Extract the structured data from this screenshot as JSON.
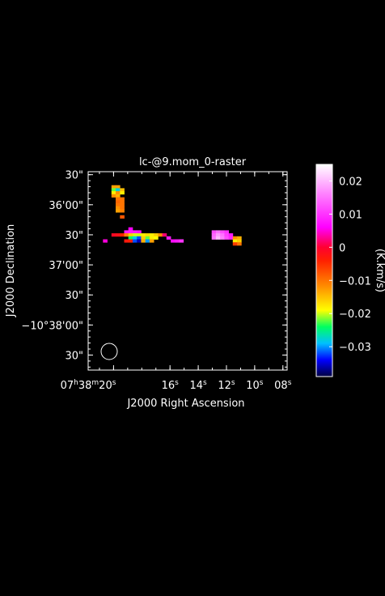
{
  "chart_data": {
    "type": "heatmap",
    "title": "lc-@9.mom_0-raster",
    "xlabel": "J2000 Right Ascension",
    "ylabel": "J2000 Declination",
    "x_ticks": [
      {
        "label": "07h38m20s",
        "ra_sec": 20
      },
      {
        "label": "16s",
        "ra_sec": 16
      },
      {
        "label": "14s",
        "ra_sec": 14
      },
      {
        "label": "12s",
        "ra_sec": 12
      },
      {
        "label": "10s",
        "ra_sec": 10
      },
      {
        "label": "08s",
        "ra_sec": 8
      }
    ],
    "x_tick_parts": {
      "h": "07",
      "hsup": "h",
      "m": "38",
      "msup": "m",
      "s20": "20",
      "ssup": "s"
    },
    "y_ticks": [
      {
        "label": "30\"",
        "dec_arcsec": 630
      },
      {
        "label": "36'00\"",
        "dec_arcsec": 660
      },
      {
        "label": "30\"",
        "dec_arcsec": 690
      },
      {
        "label": "37'00\"",
        "dec_arcsec": 720
      },
      {
        "label": "30\"",
        "dec_arcsec": 750
      },
      {
        "label": "−10°38'00\"",
        "dec_arcsec": 780
      },
      {
        "label": "30\"",
        "dec_arcsec": 810
      }
    ],
    "colorbar": {
      "label": "(K.km/s)",
      "min": -0.039,
      "max": 0.025,
      "tick_labels": [
        "0.02",
        "0.01",
        "0",
        "−0.01",
        "−0.02",
        "−0.03"
      ],
      "ticks": [
        0.02,
        0.01,
        0,
        -0.01,
        -0.02,
        -0.03
      ]
    },
    "beam": "circle",
    "colors": {
      "background": "#000000",
      "text": "#ffffff",
      "colormap": [
        [
          -0.039,
          "#000040"
        ],
        [
          -0.034,
          "#0000ff"
        ],
        [
          -0.029,
          "#00c0ff"
        ],
        [
          -0.024,
          "#00ff60"
        ],
        [
          -0.019,
          "#ffff00"
        ],
        [
          -0.012,
          "#ff9000"
        ],
        [
          -0.004,
          "#ff2000"
        ],
        [
          0.0,
          "#ff0030"
        ],
        [
          0.006,
          "#ff00ff"
        ],
        [
          0.016,
          "#ff80ff"
        ],
        [
          0.025,
          "#ffffff"
        ]
      ]
    },
    "pixels": [
      [
        20.0,
        642,
        -0.013
      ],
      [
        19.7,
        642,
        -0.013
      ],
      [
        20.0,
        645,
        -0.022
      ],
      [
        19.7,
        645,
        -0.028
      ],
      [
        19.4,
        645,
        -0.015
      ],
      [
        20.0,
        648,
        -0.018
      ],
      [
        19.7,
        648,
        -0.012
      ],
      [
        19.4,
        648,
        -0.018
      ],
      [
        20.0,
        651,
        -0.012
      ],
      [
        19.7,
        651,
        -0.014
      ],
      [
        19.7,
        654,
        -0.01
      ],
      [
        19.4,
        654,
        -0.01
      ],
      [
        19.7,
        657,
        -0.009
      ],
      [
        19.4,
        657,
        -0.01
      ],
      [
        19.7,
        660,
        -0.01
      ],
      [
        19.4,
        660,
        -0.01
      ],
      [
        19.7,
        663,
        -0.012
      ],
      [
        19.4,
        663,
        -0.01
      ],
      [
        19.7,
        666,
        -0.013
      ],
      [
        19.4,
        666,
        -0.011
      ],
      [
        19.4,
        672,
        -0.008
      ],
      [
        18.8,
        684,
        0.006
      ],
      [
        19.1,
        687,
        0.008
      ],
      [
        18.8,
        687,
        0.008
      ],
      [
        18.5,
        687,
        0.008
      ],
      [
        18.2,
        687,
        0.007
      ],
      [
        20.0,
        690,
        -0.001
      ],
      [
        19.7,
        690,
        -0.002
      ],
      [
        19.4,
        690,
        -0.004
      ],
      [
        19.1,
        690,
        -0.011
      ],
      [
        18.8,
        690,
        -0.016
      ],
      [
        18.5,
        690,
        -0.02
      ],
      [
        18.2,
        690,
        -0.02
      ],
      [
        17.9,
        690,
        -0.018
      ],
      [
        17.6,
        690,
        -0.017
      ],
      [
        17.3,
        690,
        -0.018
      ],
      [
        17.0,
        690,
        -0.016
      ],
      [
        16.7,
        690,
        -0.012
      ],
      [
        16.4,
        690,
        0.002
      ],
      [
        18.8,
        693,
        -0.024
      ],
      [
        18.5,
        693,
        -0.028
      ],
      [
        18.2,
        693,
        -0.032
      ],
      [
        17.9,
        693,
        -0.016
      ],
      [
        17.6,
        693,
        -0.022
      ],
      [
        17.3,
        693,
        -0.018
      ],
      [
        17.0,
        693,
        -0.019
      ],
      [
        20.6,
        696,
        0.005
      ],
      [
        19.1,
        696,
        -0.003
      ],
      [
        18.8,
        696,
        -0.004
      ],
      [
        18.5,
        696,
        -0.032
      ],
      [
        18.2,
        696,
        -0.036
      ],
      [
        17.9,
        696,
        -0.014
      ],
      [
        17.6,
        696,
        -0.03
      ],
      [
        17.3,
        696,
        -0.013
      ],
      [
        16.1,
        693,
        0.008
      ],
      [
        15.8,
        696,
        0.007
      ],
      [
        15.5,
        696,
        0.008
      ],
      [
        15.2,
        696,
        0.01
      ],
      [
        12.9,
        687,
        0.012
      ],
      [
        12.6,
        687,
        0.015
      ],
      [
        12.3,
        687,
        0.012
      ],
      [
        12.0,
        687,
        0.01
      ],
      [
        12.9,
        690,
        0.014
      ],
      [
        12.6,
        690,
        0.018
      ],
      [
        12.3,
        690,
        0.015
      ],
      [
        12.0,
        690,
        0.011
      ],
      [
        11.7,
        690,
        0.008
      ],
      [
        12.9,
        693,
        0.015
      ],
      [
        12.6,
        693,
        0.02
      ],
      [
        12.3,
        693,
        0.016
      ],
      [
        12.0,
        693,
        0.012
      ],
      [
        11.7,
        693,
        0.009
      ],
      [
        11.4,
        693,
        -0.012
      ],
      [
        11.1,
        693,
        -0.014
      ],
      [
        11.4,
        696,
        -0.018
      ],
      [
        11.1,
        696,
        -0.016
      ],
      [
        11.4,
        699,
        -0.006
      ],
      [
        11.1,
        699,
        -0.01
      ]
    ],
    "pixel_size_sec": 0.3,
    "pixel_size_arcsec": 3,
    "xlim_ra_sec": [
      21.8,
      7.7
    ],
    "ylim_dec_arcsec": [
      627,
      825
    ]
  }
}
